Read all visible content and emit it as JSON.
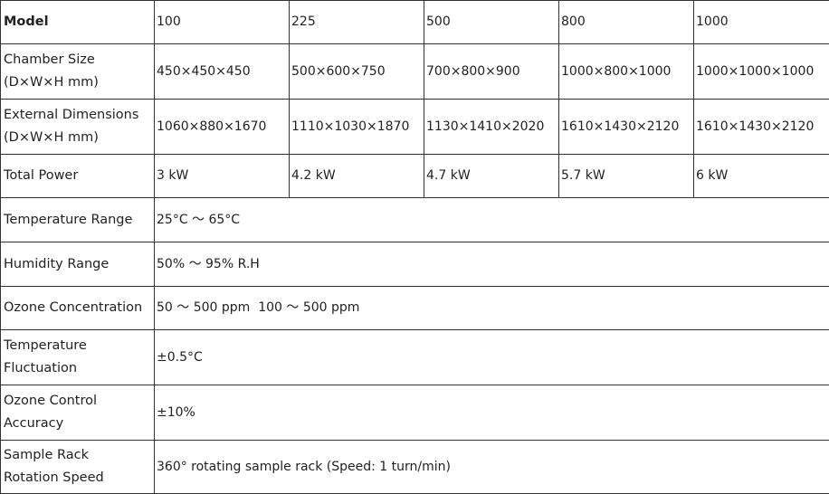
{
  "table": {
    "header": [
      "Model",
      "100",
      "225",
      "500",
      "800",
      "1000"
    ],
    "rows": [
      [
        "Chamber Size\n(D×W×H mm)",
        "450×450×450",
        "500×600×750",
        "700×800×900",
        "1000×800×1000",
        "1000×1000×1000"
      ],
      [
        "External Dimensions\n(D×W×H mm)",
        "1060×880×1670",
        "1110×1030×1870",
        "1130×1410×2020",
        "1610×1430×2120",
        "1610×1430×2120"
      ],
      [
        "Total Power",
        "3 kW",
        "4.2 kW",
        "4.7 kW",
        "5.7 kW",
        "6 kW"
      ],
      [
        "Temperature Range",
        "25°C ～ 65°C"
      ],
      [
        "Humidity Range",
        "50% ～ 95% R.H"
      ],
      [
        "Ozone Concentration",
        "50 ～ 500 ppm  100 ～ 500 ppm"
      ],
      [
        "Temperature\nFluctuation",
        "±0.5°C"
      ],
      [
        "Ozone Control\nAccuracy",
        "±10%"
      ],
      [
        "Sample Rack\nRotation Speed",
        "360° rotating sample rack (Speed: 1 turn/min)"
      ]
    ]
  }
}
